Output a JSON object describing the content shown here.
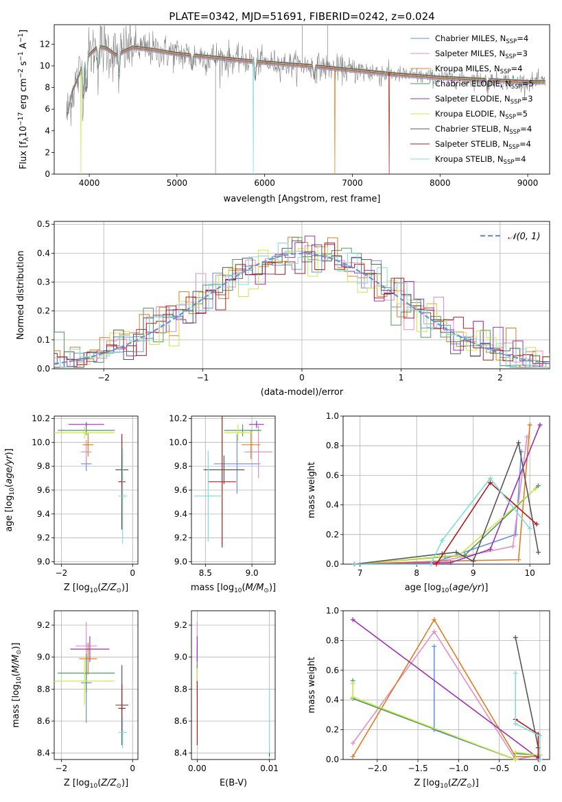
{
  "figure_title": "PLATE=0342, MJD=51691, FIBERID=0242, z=0.024",
  "colors": {
    "Chabrier MILES": "#6a8fdc",
    "Salpeter MILES": "#e88cc4",
    "Kroupa MILES": "#e07b20",
    "Chabrier ELODIE": "#4e9a5c",
    "Salpeter ELODIE": "#9b30b0",
    "Kroupa ELODIE": "#c8e84a",
    "Chabrier STELIB": "#555555",
    "Salpeter STELIB": "#b01818",
    "Kroupa STELIB": "#7edcdc"
  },
  "chart_data": [
    {
      "id": "spectrum",
      "type": "line",
      "title": "PLATE=0342, MJD=51691, FIBERID=0242, z=0.024",
      "xlabel": "wavelength [Angstrom, rest frame]",
      "ylabel": "Flux [f_λ 10^-17 erg cm^-2 s^-1 A^-1]",
      "xlim": [
        3600,
        9250
      ],
      "ylim": [
        0,
        13.8
      ],
      "xticks": [
        4000,
        5000,
        6000,
        7000,
        8000,
        9000
      ],
      "yticks": [
        0,
        2,
        4,
        6,
        8,
        10,
        12
      ],
      "legend_position": "top-right",
      "legend": [
        {
          "name": "Chabrier MILES",
          "nssp": "4"
        },
        {
          "name": "Salpeter MILES",
          "nssp": "3"
        },
        {
          "name": "Kroupa MILES",
          "nssp": "4"
        },
        {
          "name": "Chabrier ELODIE",
          "nssp": "5"
        },
        {
          "name": "Salpeter ELODIE",
          "nssp": "3"
        },
        {
          "name": "Kroupa ELODIE",
          "nssp": "5"
        },
        {
          "name": "Chabrier STELIB",
          "nssp": "4"
        },
        {
          "name": "Salpeter STELIB",
          "nssp": "4"
        },
        {
          "name": "Kroupa STELIB",
          "nssp": "4"
        }
      ],
      "data_color": "#808080",
      "continuum": {
        "x": [
          3750,
          3800,
          3900,
          3950,
          4000,
          4100,
          4200,
          4300,
          4500,
          4700,
          5000,
          5500,
          6000,
          6500,
          7000,
          7500,
          8000,
          8500,
          9000,
          9200
        ],
        "y": [
          5.5,
          7.5,
          9.5,
          10.5,
          11.0,
          11.8,
          11.6,
          11.0,
          11.7,
          11.5,
          11.1,
          10.7,
          10.3,
          10.0,
          9.6,
          9.2,
          8.9,
          8.7,
          8.5,
          8.5
        ]
      },
      "absorption_dips": [
        [
          3933,
          3.2
        ],
        [
          3968,
          3.0
        ],
        [
          4102,
          2.0
        ],
        [
          4340,
          2.2
        ],
        [
          5175,
          1.2
        ],
        [
          5893,
          1.6
        ],
        [
          6563,
          1.0
        ],
        [
          8542,
          0.8
        ]
      ],
      "model_gaps": [
        {
          "series": "Kroupa ELODIE",
          "x": 3905
        },
        {
          "series": "Kroupa STELIB",
          "x": 5870
        },
        {
          "series": "Kroupa MILES",
          "x": 6800
        },
        {
          "series": "Salpeter STELIB",
          "x": 7420
        }
      ],
      "data_spikes": [
        [
          5440,
          0
        ],
        [
          6720,
          13.8
        ],
        [
          6430,
          13.8
        ],
        [
          4530,
          13.8
        ]
      ]
    },
    {
      "id": "residuals",
      "type": "bar",
      "xlabel": "(data-model)/error",
      "ylabel": "Normed distribution",
      "xlim": [
        -2.5,
        2.5
      ],
      "ylim": [
        0,
        0.51
      ],
      "xticks": [
        -2,
        -1,
        0,
        1,
        2
      ],
      "yticks": [
        0.0,
        0.1,
        0.2,
        0.3,
        0.4,
        0.5
      ],
      "bin_width": 0.1,
      "reference": {
        "name": "N(0,1)",
        "mean": 0,
        "sigma": 1,
        "style": "dashed",
        "color": "#6a8fdc"
      },
      "legend_position": "top-right",
      "series_spread": 0.035
    },
    {
      "id": "age-vs-Z",
      "type": "scatter",
      "xlabel": "Z [log10(Z/Z_sun)]",
      "ylabel": "age [log10(age/yr)]",
      "xlim": [
        -2.2,
        0.15
      ],
      "ylim": [
        8.98,
        10.22
      ],
      "xticks": [
        -2,
        0
      ],
      "yticks": [
        9.0,
        9.2,
        9.4,
        9.6,
        9.8,
        10.0,
        10.2
      ],
      "points": [
        {
          "series": "Chabrier MILES",
          "x": -1.3,
          "y": 9.82,
          "xerr": 0.15,
          "yerr": 0.06
        },
        {
          "series": "Salpeter MILES",
          "x": -1.3,
          "y": 9.92,
          "xerr": 0.15,
          "yerr": 0.1
        },
        {
          "series": "Kroupa MILES",
          "x": -1.25,
          "y": 9.98,
          "xerr": 0.15,
          "yerr": 0.1
        },
        {
          "series": "Chabrier ELODIE",
          "x": -1.3,
          "y": 10.1,
          "xerr": 0.8,
          "yerr": 0.04
        },
        {
          "series": "Salpeter ELODIE",
          "x": -1.3,
          "y": 10.15,
          "xerr": 0.5,
          "yerr": 0.02
        },
        {
          "series": "Kroupa ELODIE",
          "x": -1.35,
          "y": 10.08,
          "xerr": 0.85,
          "yerr": 0.05
        },
        {
          "series": "Chabrier STELIB",
          "x": -0.3,
          "y": 9.77,
          "xerr": 0.18,
          "yerr": 0.12
        },
        {
          "series": "Salpeter STELIB",
          "x": -0.3,
          "y": 9.67,
          "xerr": 0.1,
          "yerr": 0.4
        },
        {
          "series": "Kroupa STELIB",
          "x": -0.28,
          "y": 9.55,
          "xerr": 0.12,
          "yerr": 0.4
        }
      ]
    },
    {
      "id": "age-vs-mass",
      "type": "scatter",
      "xlabel": "mass [log10(M/M_sun)]",
      "ylabel": "",
      "xlim": [
        8.35,
        9.25
      ],
      "ylim": [
        8.98,
        10.22
      ],
      "xticks": [
        8.5,
        9.0
      ],
      "yticks": [
        9.0,
        9.2,
        9.4,
        9.6,
        9.8,
        10.0,
        10.2
      ],
      "points": [
        {
          "series": "Chabrier MILES",
          "x": 8.84,
          "y": 9.82,
          "xerr": 0.25,
          "yerr": 0.25
        },
        {
          "series": "Salpeter MILES",
          "x": 9.07,
          "y": 9.92,
          "xerr": 0.15,
          "yerr": 0.22
        },
        {
          "series": "Kroupa MILES",
          "x": 8.99,
          "y": 9.98,
          "xerr": 0.1,
          "yerr": 0.12
        },
        {
          "series": "Chabrier ELODIE",
          "x": 8.9,
          "y": 10.1,
          "xerr": 0.2,
          "yerr": 0.05
        },
        {
          "series": "Salpeter ELODIE",
          "x": 9.05,
          "y": 10.15,
          "xerr": 0.08,
          "yerr": 0.03
        },
        {
          "series": "Kroupa ELODIE",
          "x": 8.85,
          "y": 10.08,
          "xerr": 0.15,
          "yerr": 0.07
        },
        {
          "series": "Chabrier STELIB",
          "x": 8.7,
          "y": 9.77,
          "xerr": 0.22,
          "yerr": 0.12
        },
        {
          "series": "Salpeter STELIB",
          "x": 8.68,
          "y": 9.67,
          "xerr": 0.15,
          "yerr": 0.55
        },
        {
          "series": "Kroupa STELIB",
          "x": 8.53,
          "y": 9.55,
          "xerr": 0.15,
          "yerr": 0.38
        }
      ]
    },
    {
      "id": "weight-vs-age",
      "type": "line",
      "xlabel": "age [log10(age/yr)]",
      "ylabel": "mass weight",
      "xlim": [
        6.7,
        10.35
      ],
      "ylim": [
        0,
        1.0
      ],
      "xticks": [
        7,
        8,
        9,
        10
      ],
      "yticks": [
        0.0,
        0.2,
        0.4,
        0.6,
        0.8,
        1.0
      ],
      "series": [
        {
          "name": "Chabrier MILES",
          "x": [
            6.9,
            8.3,
            9.75,
            9.85
          ],
          "y": [
            0.0,
            0.01,
            0.2,
            0.76
          ]
        },
        {
          "name": "Salpeter MILES",
          "x": [
            6.9,
            8.3,
            9.7,
            9.95
          ],
          "y": [
            0.0,
            0.01,
            0.12,
            0.86
          ]
        },
        {
          "name": "Kroupa MILES",
          "x": [
            6.9,
            8.4,
            9.8,
            10.0
          ],
          "y": [
            0.0,
            0.02,
            0.03,
            0.94
          ]
        },
        {
          "name": "Chabrier ELODIE",
          "x": [
            6.9,
            8.5,
            8.85,
            10.15
          ],
          "y": [
            0.0,
            0.05,
            0.06,
            0.53
          ]
        },
        {
          "name": "Salpeter ELODIE",
          "x": [
            6.9,
            8.6,
            9.3,
            10.18
          ],
          "y": [
            0.0,
            0.01,
            0.1,
            0.94
          ]
        },
        {
          "name": "Kroupa ELODIE",
          "x": [
            6.9,
            8.4,
            8.75,
            10.1
          ],
          "y": [
            0.0,
            0.05,
            0.06,
            0.51
          ]
        },
        {
          "name": "Chabrier STELIB",
          "x": [
            6.9,
            8.45,
            8.7,
            9.0,
            9.8,
            10.15
          ],
          "y": [
            0.0,
            0.07,
            0.08,
            0.02,
            0.82,
            0.08
          ]
        },
        {
          "name": "Salpeter STELIB",
          "x": [
            6.9,
            8.35,
            9.3,
            10.12
          ],
          "y": [
            0.0,
            0.0,
            0.55,
            0.27
          ]
        },
        {
          "name": "Kroupa STELIB",
          "x": [
            6.9,
            8.25,
            8.45,
            9.3,
            10.0
          ],
          "y": [
            0.0,
            0.0,
            0.16,
            0.58,
            0.24
          ]
        }
      ]
    },
    {
      "id": "mass-vs-Z",
      "type": "scatter",
      "xlabel": "Z [log10(Z/Z_sun)]",
      "ylabel": "mass [log10(M/M_sun)]",
      "xlim": [
        -2.2,
        0.15
      ],
      "ylim": [
        8.36,
        9.29
      ],
      "xticks": [
        -2,
        0
      ],
      "yticks": [
        8.4,
        8.6,
        8.8,
        9.0,
        9.2
      ],
      "points": [
        {
          "series": "Chabrier MILES",
          "x": -1.3,
          "y": 8.84,
          "xerr": 0.15,
          "yerr": 0.25
        },
        {
          "series": "Salpeter MILES",
          "x": -1.3,
          "y": 9.07,
          "xerr": 0.3,
          "yerr": 0.15
        },
        {
          "series": "Kroupa MILES",
          "x": -1.25,
          "y": 8.99,
          "xerr": 0.25,
          "yerr": 0.1
        },
        {
          "series": "Chabrier ELODIE",
          "x": -1.3,
          "y": 8.9,
          "xerr": 0.8,
          "yerr": 0.12
        },
        {
          "series": "Salpeter ELODIE",
          "x": -1.2,
          "y": 9.05,
          "xerr": 0.55,
          "yerr": 0.08
        },
        {
          "series": "Kroupa ELODIE",
          "x": -1.35,
          "y": 8.85,
          "xerr": 0.85,
          "yerr": 0.15
        },
        {
          "series": "Chabrier STELIB",
          "x": -0.3,
          "y": 8.7,
          "xerr": 0.18,
          "yerr": 0.25
        },
        {
          "series": "Salpeter STELIB",
          "x": -0.3,
          "y": 8.68,
          "xerr": 0.1,
          "yerr": 0.15
        },
        {
          "series": "Kroupa STELIB",
          "x": -0.28,
          "y": 8.53,
          "xerr": 0.12,
          "yerr": 0.1
        }
      ]
    },
    {
      "id": "mass-vs-EBV",
      "type": "scatter",
      "xlabel": "E(B-V)",
      "ylabel": "",
      "xlim": [
        -0.0008,
        0.0108
      ],
      "ylim": [
        8.36,
        9.29
      ],
      "xticks": [
        0.0,
        0.01
      ],
      "yticks": [
        8.4,
        8.6,
        8.8,
        9.0,
        9.2
      ],
      "points": [
        {
          "series": "Chabrier MILES",
          "x": 0.0,
          "y": 8.84,
          "xerr": 0,
          "yerr": 0.08
        },
        {
          "series": "Salpeter MILES",
          "x": 0.0,
          "y": 9.07,
          "xerr": 0,
          "yerr": 0.15
        },
        {
          "series": "Kroupa MILES",
          "x": 0.0,
          "y": 8.99,
          "xerr": 0,
          "yerr": 0.08
        },
        {
          "series": "Chabrier ELODIE",
          "x": 0.0,
          "y": 8.9,
          "xerr": 0,
          "yerr": 0.06
        },
        {
          "series": "Salpeter ELODIE",
          "x": 0.0,
          "y": 9.05,
          "xerr": 0,
          "yerr": 0.08
        },
        {
          "series": "Kroupa ELODIE",
          "x": 0.0,
          "y": 8.85,
          "xerr": 0,
          "yerr": 0.08
        },
        {
          "series": "Chabrier STELIB",
          "x": 0.01,
          "y": 8.4,
          "xerr": 0,
          "yerr": 0.02
        },
        {
          "series": "Salpeter STELIB",
          "x": 0.0,
          "y": 8.65,
          "xerr": 0,
          "yerr": 0.2
        },
        {
          "series": "Kroupa STELIB",
          "x": 0.01,
          "y": 8.6,
          "xerr": 0,
          "yerr": 0.2
        }
      ]
    },
    {
      "id": "weight-vs-Z",
      "type": "line",
      "xlabel": "Z [log10(Z/Z_sun)]",
      "ylabel": "mass weight",
      "xlim": [
        -2.42,
        0.12
      ],
      "ylim": [
        0,
        1.0
      ],
      "xticks": [
        -2.0,
        -1.5,
        -1.0,
        -0.5,
        0.0
      ],
      "yticks": [
        0.0,
        0.2,
        0.4,
        0.6,
        0.8,
        1.0
      ],
      "series": [
        {
          "name": "Chabrier MILES",
          "x": [
            -1.3,
            -1.3,
            -0.3,
            -0.02
          ],
          "y": [
            0.76,
            0.2,
            0.0,
            0.03
          ]
        },
        {
          "name": "Salpeter MILES",
          "x": [
            -2.3,
            -1.3,
            -0.3,
            0.0
          ],
          "y": [
            0.11,
            0.86,
            0.0,
            0.03
          ]
        },
        {
          "name": "Kroupa MILES",
          "x": [
            -2.3,
            -1.3,
            -0.3,
            -0.02
          ],
          "y": [
            0.02,
            0.94,
            0.02,
            0.02
          ]
        },
        {
          "name": "Chabrier ELODIE",
          "x": [
            -2.3,
            -2.3,
            -0.3,
            -0.3,
            -0.02
          ],
          "y": [
            0.53,
            0.41,
            0.0,
            0.04,
            0.03
          ]
        },
        {
          "name": "Salpeter ELODIE",
          "x": [
            -2.3,
            -0.02,
            -0.02
          ],
          "y": [
            0.94,
            0.01,
            0.01
          ]
        },
        {
          "name": "Kroupa ELODIE",
          "x": [
            -2.3,
            -2.3,
            -0.3,
            -0.3,
            -0.02
          ],
          "y": [
            0.51,
            0.42,
            0.0,
            0.05,
            0.03
          ]
        },
        {
          "name": "Chabrier STELIB",
          "x": [
            -0.3,
            -0.02,
            -0.02,
            -0.02
          ],
          "y": [
            0.82,
            0.08,
            0.02,
            0.08
          ]
        },
        {
          "name": "Salpeter STELIB",
          "x": [
            -0.3,
            -0.02,
            -0.02
          ],
          "y": [
            0.27,
            0.17,
            0.0
          ]
        },
        {
          "name": "Kroupa STELIB",
          "x": [
            -0.3,
            -0.3,
            0.0,
            0.0
          ],
          "y": [
            0.58,
            0.24,
            0.16,
            0.0
          ]
        }
      ]
    }
  ]
}
